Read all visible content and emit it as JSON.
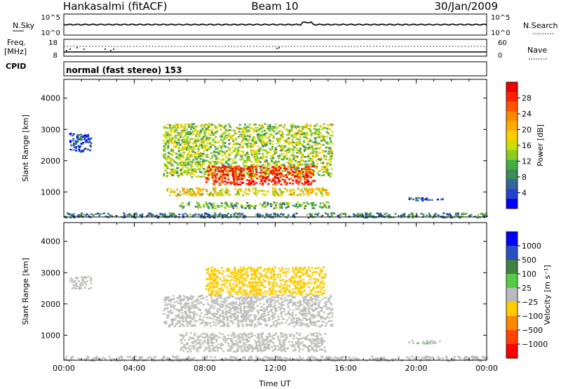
{
  "header": {
    "station": "Hankasalmi (fitACF)",
    "beam": "Beam 10",
    "date": "30/Jan/2009"
  },
  "top_panels": {
    "nsky_label": "N.Sky",
    "nsky_ticks": [
      "10^5",
      "10^0"
    ],
    "nsearch_label": "N.Search",
    "nsearch_ticks": [
      "10^5",
      "10^0"
    ],
    "freq_label": "Freq.",
    "freq_unit": "[MHz]",
    "freq_ticks": [
      "18",
      "8"
    ],
    "nave_label": "Nave",
    "nave_ticks": [
      "60",
      "0"
    ],
    "cpid_label": "CPID",
    "cpid_value": "normal (fast stereo) 153"
  },
  "colors": {
    "power_scale": [
      "#0000ff",
      "#2244cc",
      "#336699",
      "#3a8a5a",
      "#44aa44",
      "#88cc22",
      "#ccdd00",
      "#ffcc00",
      "#ffaa00",
      "#ff8800",
      "#ff5500",
      "#ff2200",
      "#ee0000"
    ],
    "velocity_scale": [
      "#0000ff",
      "#2a4fc0",
      "#3f7f3f",
      "#55cc44",
      "#bbbbbb",
      "#ffcc00",
      "#ff8800",
      "#ff4400",
      "#ff0000"
    ],
    "velocity_grey": "#c8c8c0"
  },
  "chart_data": [
    {
      "type": "heatmap",
      "name": "power",
      "ylabel": "Slant Range [km]",
      "yticks": [
        "4000",
        "3000",
        "2000",
        "1000"
      ],
      "ylim": [
        200,
        4600
      ],
      "xlim": [
        0,
        24
      ],
      "colorbar_label": "Power [dB]",
      "colorbar_ticks": [
        "28",
        "24",
        "20",
        "16",
        "12",
        "8",
        "4"
      ],
      "colorbar_range": [
        0,
        32
      ],
      "regions": [
        {
          "t0": 5.6,
          "t1": 15.2,
          "r0": 1500,
          "r1": 3200,
          "level": 0.45
        },
        {
          "t0": 8.0,
          "t1": 14.2,
          "r0": 1250,
          "r1": 1850,
          "level": 0.9
        },
        {
          "t0": 5.8,
          "t1": 15.0,
          "r0": 900,
          "r1": 1150,
          "level": 0.55
        },
        {
          "t0": 6.5,
          "t1": 15.0,
          "r0": 500,
          "r1": 700,
          "level": 0.35
        },
        {
          "t0": 0.0,
          "t1": 24.0,
          "r0": 200,
          "r1": 350,
          "level": 0.25
        },
        {
          "t0": 0.3,
          "t1": 1.5,
          "r0": 2300,
          "r1": 2900,
          "level": 0.15
        },
        {
          "t0": 19.5,
          "t1": 21.5,
          "r0": 750,
          "r1": 850,
          "level": 0.12
        }
      ]
    },
    {
      "type": "heatmap",
      "name": "velocity",
      "ylabel": "Slant Range [km]",
      "yticks": [
        "4000",
        "3000",
        "2000",
        "1000"
      ],
      "ylim": [
        200,
        4600
      ],
      "xlim": [
        0,
        24
      ],
      "xlabel": "Time UT",
      "xticks": [
        "00:00",
        "04:00",
        "08:00",
        "12:00",
        "16:00",
        "20:00",
        "00:00"
      ],
      "colorbar_label": "Velocity [m s⁻¹]",
      "colorbar_ticks": [
        "1000",
        "500",
        "100",
        "25",
        "−25",
        "−100",
        "−500",
        "−1000"
      ],
      "colorbar_range": [
        -1200,
        1200
      ],
      "regions": [
        {
          "t0": 8.0,
          "t1": 14.8,
          "r0": 2300,
          "r1": 3200,
          "velocity": -300
        },
        {
          "t0": 5.6,
          "t1": 15.2,
          "r0": 1300,
          "r1": 2300,
          "velocity": 0
        },
        {
          "t0": 6.5,
          "t1": 14.8,
          "r0": 500,
          "r1": 1100,
          "velocity": 0
        },
        {
          "t0": 0.0,
          "t1": 24.0,
          "r0": 200,
          "r1": 350,
          "velocity": 60
        },
        {
          "t0": 0.3,
          "t1": 1.5,
          "r0": 2500,
          "r1": 2900,
          "velocity": 0
        },
        {
          "t0": 19.5,
          "t1": 21.5,
          "r0": 750,
          "r1": 850,
          "velocity": 80
        }
      ]
    }
  ]
}
